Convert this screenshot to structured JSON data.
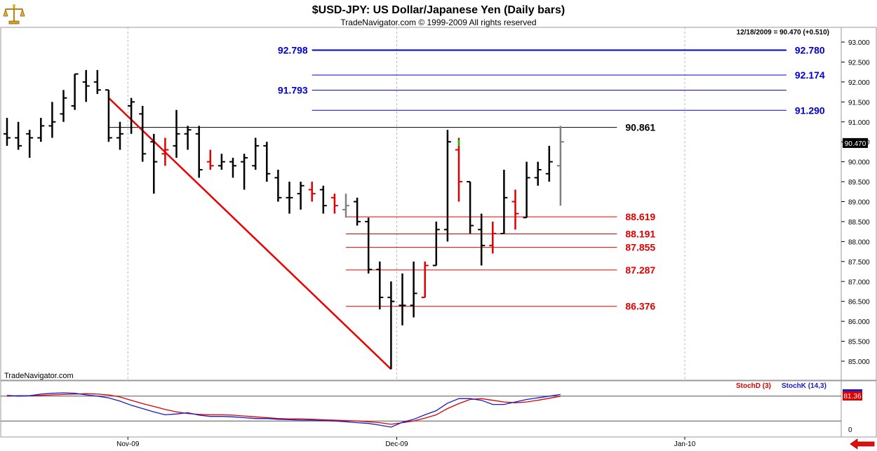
{
  "header": {
    "title": "$USD-JPY:  US Dollar/Japanese Yen  (Daily bars)",
    "copyright": "TradeNavigator.com © 1999-2009 All rights reserved",
    "last_quote": "12/18/2009 = 90.470 (+0.510)",
    "watermark": "TradeNavigator.com"
  },
  "colors": {
    "up_bar": "#000000",
    "down_bar": "#e00000",
    "trend_line": "#ee0000",
    "fib_up": "#0000cc",
    "fib_down": "#dd0000",
    "stoch_d": "#dd0000",
    "stoch_k": "#1a1acc",
    "background": "#ffffff",
    "grid": "#b8b8b8"
  },
  "icons": {
    "logo": "brass-scale-icon",
    "nav": "red-left-arrow-icon"
  },
  "chart_data": [
    {
      "type": "ohlc",
      "title": "$USD-JPY:  US Dollar/Japanese Yen  (Daily bars)",
      "ylim": [
        84.6,
        93.3
      ],
      "y_ticks": [
        "93.000",
        "92.500",
        "92.000",
        "91.500",
        "91.000",
        "90.500",
        "90.000",
        "89.500",
        "89.000",
        "88.500",
        "88.000",
        "87.500",
        "87.000",
        "86.500",
        "86.000",
        "85.500",
        "85.000"
      ],
      "x_ticks": [
        "Nov-09",
        "Dec-09",
        "Jan-10"
      ],
      "last_price_label": "90.470",
      "bars": [
        {
          "o": 90.7,
          "h": 91.1,
          "l": 90.4,
          "c": 90.6,
          "col": "black"
        },
        {
          "o": 90.6,
          "h": 91.0,
          "l": 90.3,
          "c": 90.4,
          "col": "black"
        },
        {
          "o": 90.7,
          "h": 90.8,
          "l": 90.1,
          "c": 90.6,
          "col": "black"
        },
        {
          "o": 90.6,
          "h": 91.1,
          "l": 90.5,
          "c": 90.9,
          "col": "black"
        },
        {
          "o": 90.9,
          "h": 91.5,
          "l": 90.6,
          "c": 91.0,
          "col": "black"
        },
        {
          "o": 91.2,
          "h": 91.8,
          "l": 91.0,
          "c": 91.6,
          "col": "black"
        },
        {
          "o": 91.4,
          "h": 92.2,
          "l": 91.3,
          "c": 92.2,
          "col": "black"
        },
        {
          "o": 92.0,
          "h": 92.3,
          "l": 91.5,
          "c": 91.9,
          "col": "black"
        },
        {
          "o": 92.0,
          "h": 92.3,
          "l": 91.7,
          "c": 91.8,
          "col": "black"
        },
        {
          "o": 91.8,
          "h": 91.8,
          "l": 90.5,
          "c": 90.6,
          "col": "black"
        },
        {
          "o": 90.6,
          "h": 91.0,
          "l": 90.3,
          "c": 90.7,
          "col": "black"
        },
        {
          "o": 91.4,
          "h": 91.6,
          "l": 90.7,
          "c": 91.5,
          "col": "black"
        },
        {
          "o": 91.2,
          "h": 91.4,
          "l": 90.0,
          "c": 90.2,
          "col": "black"
        },
        {
          "o": 90.5,
          "h": 90.7,
          "l": 89.2,
          "c": 90.0,
          "col": "black"
        },
        {
          "o": 90.2,
          "h": 90.6,
          "l": 89.9,
          "c": 90.3,
          "col": "red"
        },
        {
          "o": 90.4,
          "h": 91.3,
          "l": 90.1,
          "c": 90.7,
          "col": "black"
        },
        {
          "o": 90.7,
          "h": 90.9,
          "l": 90.3,
          "c": 90.8,
          "col": "black"
        },
        {
          "o": 90.7,
          "h": 90.9,
          "l": 89.6,
          "c": 89.8,
          "col": "black"
        },
        {
          "o": 90.0,
          "h": 90.3,
          "l": 89.8,
          "c": 89.9,
          "col": "red"
        },
        {
          "o": 89.9,
          "h": 90.2,
          "l": 89.8,
          "c": 90.0,
          "col": "black"
        },
        {
          "o": 90.0,
          "h": 90.1,
          "l": 89.6,
          "c": 89.9,
          "col": "black"
        },
        {
          "o": 90.0,
          "h": 90.2,
          "l": 89.3,
          "c": 90.1,
          "col": "black"
        },
        {
          "o": 89.9,
          "h": 90.6,
          "l": 89.8,
          "c": 90.4,
          "col": "black"
        },
        {
          "o": 90.4,
          "h": 90.5,
          "l": 89.5,
          "c": 89.7,
          "col": "black"
        },
        {
          "o": 89.6,
          "h": 89.8,
          "l": 89.0,
          "c": 89.1,
          "col": "black"
        },
        {
          "o": 89.1,
          "h": 89.5,
          "l": 88.7,
          "c": 89.1,
          "col": "black"
        },
        {
          "o": 89.2,
          "h": 89.5,
          "l": 88.8,
          "c": 89.4,
          "col": "black"
        },
        {
          "o": 89.3,
          "h": 89.5,
          "l": 89.0,
          "c": 89.2,
          "col": "red"
        },
        {
          "o": 89.3,
          "h": 89.4,
          "l": 88.7,
          "c": 88.9,
          "col": "black"
        },
        {
          "o": 89.1,
          "h": 89.2,
          "l": 88.7,
          "c": 88.9,
          "col": "red"
        },
        {
          "o": 88.8,
          "h": 89.2,
          "l": 88.6,
          "c": 88.9,
          "col": "gray"
        },
        {
          "o": 89.0,
          "h": 89.1,
          "l": 88.4,
          "c": 88.5,
          "col": "black"
        },
        {
          "o": 88.5,
          "h": 88.6,
          "l": 87.2,
          "c": 87.3,
          "col": "black"
        },
        {
          "o": 87.3,
          "h": 87.5,
          "l": 86.3,
          "c": 86.6,
          "col": "black"
        },
        {
          "o": 86.6,
          "h": 87.0,
          "l": 84.8,
          "c": 86.5,
          "col": "black"
        },
        {
          "o": 86.4,
          "h": 87.2,
          "l": 85.9,
          "c": 86.4,
          "col": "black"
        },
        {
          "o": 86.4,
          "h": 87.5,
          "l": 86.1,
          "c": 86.7,
          "col": "black"
        },
        {
          "o": 86.6,
          "h": 87.5,
          "l": 86.6,
          "c": 87.4,
          "col": "red"
        },
        {
          "o": 87.4,
          "h": 88.5,
          "l": 87.4,
          "c": 88.3,
          "col": "black"
        },
        {
          "o": 88.3,
          "h": 90.8,
          "l": 88.0,
          "c": 90.5,
          "col": "black"
        },
        {
          "o": 90.3,
          "h": 90.6,
          "l": 89.0,
          "c": 89.5,
          "col": "red"
        },
        {
          "o": 89.5,
          "h": 89.5,
          "l": 88.2,
          "c": 88.4,
          "col": "black"
        },
        {
          "o": 88.3,
          "h": 88.7,
          "l": 87.4,
          "c": 87.9,
          "col": "black"
        },
        {
          "o": 87.9,
          "h": 88.5,
          "l": 87.7,
          "c": 88.2,
          "col": "red"
        },
        {
          "o": 88.2,
          "h": 89.8,
          "l": 88.2,
          "c": 89.1,
          "col": "black"
        },
        {
          "o": 89.0,
          "h": 89.3,
          "l": 88.3,
          "c": 88.7,
          "col": "red"
        },
        {
          "o": 88.6,
          "h": 90.0,
          "l": 88.6,
          "c": 89.6,
          "col": "black"
        },
        {
          "o": 89.6,
          "h": 90.0,
          "l": 89.4,
          "c": 89.8,
          "col": "black"
        },
        {
          "o": 89.7,
          "h": 90.4,
          "l": 89.5,
          "c": 90.0,
          "col": "black"
        },
        {
          "o": 89.9,
          "h": 90.9,
          "l": 88.9,
          "c": 90.5,
          "col": "gray"
        }
      ],
      "trend_line": {
        "from": {
          "bar": 9,
          "price": 91.6
        },
        "to": {
          "bar": 34,
          "price": 84.8
        }
      },
      "horizontal_lines": [
        {
          "value": 90.861,
          "label": "90.861",
          "color": "black",
          "from_bar": 9,
          "to_bar": 54
        },
        {
          "value": 92.798,
          "label": "92.798",
          "color": "blue",
          "from_bar": 27,
          "to_bar": 69,
          "label_side": "left",
          "value_right": 92.78,
          "label_right": "92.780"
        },
        {
          "value": 92.174,
          "label": "92.174",
          "color": "blue",
          "from_bar": 27,
          "to_bar": 69
        },
        {
          "value": 91.793,
          "label": "91.793",
          "color": "blue",
          "from_bar": 27,
          "to_bar": 69,
          "label_side": "left"
        },
        {
          "value": 91.29,
          "label": "91.290",
          "color": "blue",
          "from_bar": 27,
          "to_bar": 69
        },
        {
          "value": 88.619,
          "label": "88.619",
          "color": "red",
          "from_bar": 30,
          "to_bar": 54
        },
        {
          "value": 88.191,
          "label": "88.191",
          "color": "red",
          "from_bar": 30,
          "to_bar": 54
        },
        {
          "value": 87.855,
          "label": "87.855",
          "color": "red",
          "from_bar": 30,
          "to_bar": 54
        },
        {
          "value": 87.287,
          "label": "87.287",
          "color": "red",
          "from_bar": 30,
          "to_bar": 54
        },
        {
          "value": 86.376,
          "label": "86.376",
          "color": "red",
          "from_bar": 30,
          "to_bar": 54
        }
      ]
    },
    {
      "type": "line",
      "ylim": [
        0,
        100
      ],
      "reference_levels": [
        80,
        20
      ],
      "y_tick_label": "0",
      "last_value_label": "81.36",
      "series": [
        {
          "name": "StochD (3)",
          "color": "red",
          "values": [
            80,
            81,
            81,
            82,
            83,
            84,
            85,
            86,
            85,
            83,
            78,
            70,
            62,
            55,
            48,
            42,
            38,
            36,
            35,
            35,
            34,
            32,
            30,
            28,
            26,
            25,
            25,
            24,
            23,
            22,
            21,
            20,
            18,
            16,
            12,
            16,
            20,
            27,
            35,
            50,
            62,
            72,
            74,
            70,
            66,
            64,
            66,
            70,
            75,
            80
          ]
        },
        {
          "name": "StochK (14,3)",
          "color": "blue",
          "values": [
            82,
            80,
            81,
            85,
            87,
            88,
            87,
            83,
            80,
            76,
            68,
            58,
            50,
            42,
            35,
            37,
            40,
            34,
            31,
            31,
            30,
            28,
            26,
            26,
            24,
            23,
            22,
            22,
            21,
            20,
            18,
            16,
            14,
            10,
            5,
            17,
            24,
            35,
            45,
            63,
            74,
            74,
            70,
            60,
            60,
            66,
            72,
            76,
            80,
            84
          ]
        }
      ]
    }
  ]
}
